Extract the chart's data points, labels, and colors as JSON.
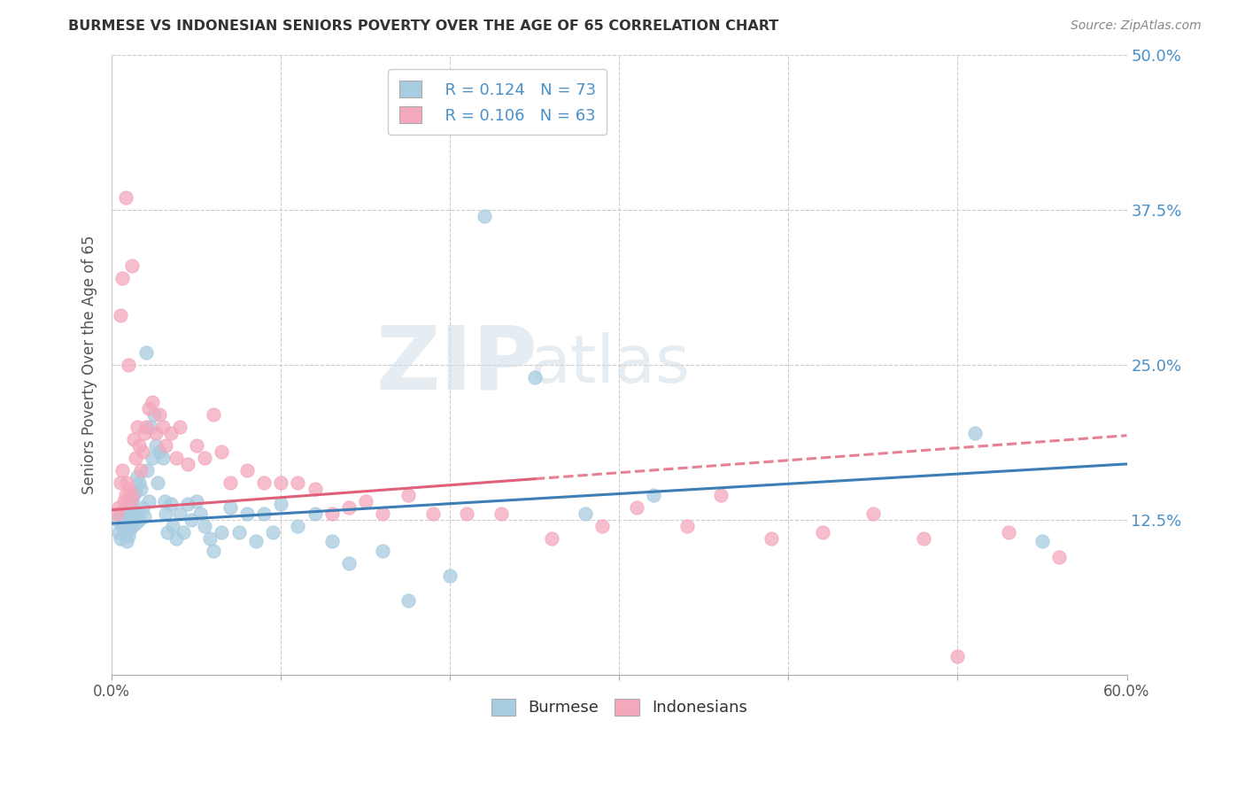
{
  "title": "BURMESE VS INDONESIAN SENIORS POVERTY OVER THE AGE OF 65 CORRELATION CHART",
  "source": "Source: ZipAtlas.com",
  "ylabel": "Seniors Poverty Over the Age of 65",
  "xlim": [
    0.0,
    0.6
  ],
  "ylim": [
    0.0,
    0.5
  ],
  "burmese_R": "0.124",
  "burmese_N": "73",
  "indonesian_R": "0.106",
  "indonesian_N": "63",
  "burmese_color": "#a8cce0",
  "indonesian_color": "#f4a8bc",
  "burmese_line_color": "#3c7eb5",
  "indonesian_line_color": "#e0607a",
  "watermark_zip": "ZIP",
  "watermark_atlas": "atlas",
  "burmese_x": [
    0.003,
    0.004,
    0.005,
    0.005,
    0.006,
    0.007,
    0.008,
    0.008,
    0.009,
    0.009,
    0.01,
    0.01,
    0.011,
    0.011,
    0.012,
    0.012,
    0.013,
    0.013,
    0.014,
    0.014,
    0.015,
    0.015,
    0.016,
    0.016,
    0.017,
    0.018,
    0.019,
    0.02,
    0.021,
    0.022,
    0.023,
    0.024,
    0.025,
    0.026,
    0.027,
    0.028,
    0.03,
    0.031,
    0.032,
    0.033,
    0.035,
    0.036,
    0.038,
    0.04,
    0.042,
    0.045,
    0.047,
    0.05,
    0.052,
    0.055,
    0.058,
    0.06,
    0.065,
    0.07,
    0.075,
    0.08,
    0.085,
    0.09,
    0.095,
    0.1,
    0.11,
    0.12,
    0.13,
    0.14,
    0.16,
    0.175,
    0.2,
    0.22,
    0.25,
    0.28,
    0.32,
    0.51,
    0.55
  ],
  "burmese_y": [
    0.125,
    0.115,
    0.13,
    0.11,
    0.12,
    0.118,
    0.13,
    0.115,
    0.122,
    0.108,
    0.127,
    0.112,
    0.135,
    0.118,
    0.14,
    0.12,
    0.145,
    0.128,
    0.148,
    0.122,
    0.16,
    0.13,
    0.155,
    0.125,
    0.15,
    0.135,
    0.128,
    0.26,
    0.165,
    0.14,
    0.2,
    0.175,
    0.21,
    0.185,
    0.155,
    0.18,
    0.175,
    0.14,
    0.13,
    0.115,
    0.138,
    0.12,
    0.11,
    0.13,
    0.115,
    0.138,
    0.125,
    0.14,
    0.13,
    0.12,
    0.11,
    0.1,
    0.115,
    0.135,
    0.115,
    0.13,
    0.108,
    0.13,
    0.115,
    0.138,
    0.12,
    0.13,
    0.108,
    0.09,
    0.1,
    0.06,
    0.08,
    0.37,
    0.24,
    0.13,
    0.145,
    0.195,
    0.108
  ],
  "indonesian_x": [
    0.003,
    0.004,
    0.005,
    0.006,
    0.007,
    0.008,
    0.009,
    0.01,
    0.011,
    0.012,
    0.013,
    0.014,
    0.015,
    0.016,
    0.017,
    0.018,
    0.019,
    0.02,
    0.022,
    0.024,
    0.026,
    0.028,
    0.03,
    0.032,
    0.035,
    0.038,
    0.04,
    0.045,
    0.05,
    0.055,
    0.06,
    0.065,
    0.07,
    0.08,
    0.09,
    0.1,
    0.11,
    0.12,
    0.13,
    0.14,
    0.15,
    0.16,
    0.175,
    0.19,
    0.21,
    0.23,
    0.26,
    0.29,
    0.31,
    0.34,
    0.36,
    0.39,
    0.42,
    0.45,
    0.48,
    0.5,
    0.53,
    0.56,
    0.01,
    0.008,
    0.006,
    0.005,
    0.012
  ],
  "indonesian_y": [
    0.13,
    0.135,
    0.155,
    0.165,
    0.14,
    0.145,
    0.155,
    0.15,
    0.14,
    0.145,
    0.19,
    0.175,
    0.2,
    0.185,
    0.165,
    0.18,
    0.195,
    0.2,
    0.215,
    0.22,
    0.195,
    0.21,
    0.2,
    0.185,
    0.195,
    0.175,
    0.2,
    0.17,
    0.185,
    0.175,
    0.21,
    0.18,
    0.155,
    0.165,
    0.155,
    0.155,
    0.155,
    0.15,
    0.13,
    0.135,
    0.14,
    0.13,
    0.145,
    0.13,
    0.13,
    0.13,
    0.11,
    0.12,
    0.135,
    0.12,
    0.145,
    0.11,
    0.115,
    0.13,
    0.11,
    0.015,
    0.115,
    0.095,
    0.25,
    0.385,
    0.32,
    0.29,
    0.33
  ]
}
